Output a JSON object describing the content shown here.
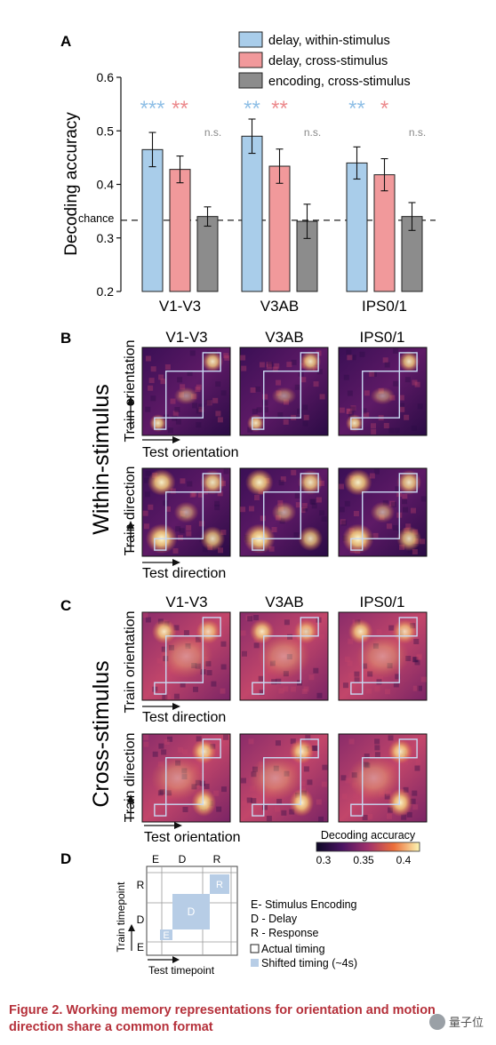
{
  "panels": {
    "A": "A",
    "B": "B",
    "C": "C",
    "D": "D"
  },
  "chart_data": {
    "type": "bar",
    "ylabel": "Decoding accuracy",
    "ylim": [
      0.2,
      0.6
    ],
    "yticks": [
      "0.2",
      "0.3",
      "0.4",
      "0.5",
      "0.6"
    ],
    "chance_label": "chance",
    "chance_value": 0.333,
    "categories": [
      "V1-V3",
      "V3AB",
      "IPS0/1"
    ],
    "series": [
      {
        "name": "delay, within-stimulus",
        "color": "#a9cdea",
        "values": [
          0.465,
          0.49,
          0.44
        ],
        "err": [
          0.032,
          0.032,
          0.03
        ],
        "stars": [
          "***",
          "**",
          "**"
        ],
        "star_color": "#8fbfe6"
      },
      {
        "name": "delay, cross-stimulus",
        "color": "#f1999b",
        "values": [
          0.428,
          0.434,
          0.418
        ],
        "err": [
          0.025,
          0.032,
          0.03
        ],
        "stars": [
          "**",
          "**",
          "*"
        ],
        "star_color": "#ec8a8d"
      },
      {
        "name": "encoding, cross-stimulus",
        "color": "#8c8c8c",
        "values": [
          0.34,
          0.331,
          0.34
        ],
        "err": [
          0.018,
          0.032,
          0.026
        ],
        "stars": [
          "n.s.",
          "n.s.",
          "n.s."
        ],
        "star_color": "#888888"
      }
    ]
  },
  "within": {
    "side_label": "Within-stimulus",
    "columns": [
      "V1-V3",
      "V3AB",
      "IPS0/1"
    ],
    "row1": {
      "train": "Train orientation",
      "test": "Test orientation"
    },
    "row2": {
      "train": "Train direction",
      "test": "Test direction"
    }
  },
  "cross": {
    "side_label": "Cross-stimulus",
    "columns": [
      "V1-V3",
      "V3AB",
      "IPS0/1"
    ],
    "row1": {
      "train": "Train orientation",
      "test": "Test direction"
    },
    "row2": {
      "train": "Train direction",
      "test": "Test orientation"
    }
  },
  "colorbar": {
    "title": "Decoding accuracy",
    "ticks": [
      "0.3",
      "0.35",
      "0.4"
    ]
  },
  "schematic": {
    "col_labels": [
      "E",
      "D",
      "R"
    ],
    "row_labels": [
      "R",
      "D",
      "E"
    ],
    "block_labels": [
      "E",
      "D",
      "R"
    ],
    "train_label": "Train timepoint",
    "test_label": "Test timepoint",
    "legend": [
      "E- Stimulus Encoding",
      "D - Delay",
      "R - Response"
    ],
    "box_legend": [
      "Actual timing",
      "Shifted timing (~4s)"
    ]
  },
  "caption": "Figure 2. Working memory representations for orientation and motion direction share a common format",
  "watermark": "量子位"
}
